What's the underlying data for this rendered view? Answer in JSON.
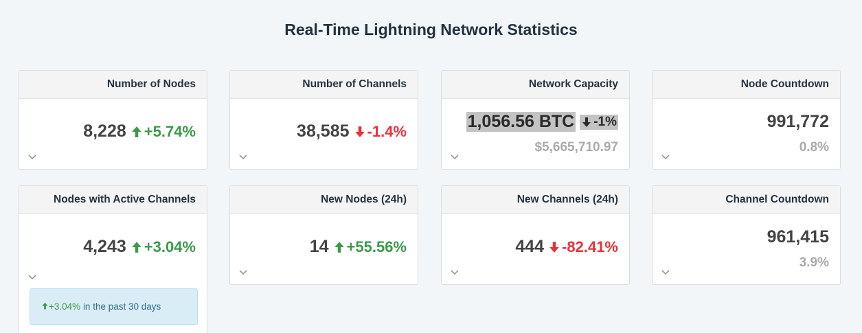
{
  "header": {
    "title": "Real-Time Lightning Network Statistics"
  },
  "cards": [
    {
      "label": "Number of Nodes",
      "value": "8,228",
      "change": "+5.74%"
    },
    {
      "label": "Number of Channels",
      "value": "38,585",
      "change": "-1.4%"
    },
    {
      "label": "Network Capacity",
      "value": "1,056.56 BTC",
      "change": "-1%",
      "sub": "$5,665,710.97"
    },
    {
      "label": "Node Countdown",
      "value": "991,772",
      "sub": "0.8%"
    },
    {
      "label": "Nodes with Active Channels",
      "value": "4,243",
      "change": "+3.04%",
      "note": {
        "change": "+3.04%",
        "text": "in the past 30 days"
      }
    },
    {
      "label": "New Nodes (24h)",
      "value": "14",
      "change": "+55.56%"
    },
    {
      "label": "New Channels (24h)",
      "value": "444",
      "change": "-82.41%"
    },
    {
      "label": "Channel Countdown",
      "value": "961,415",
      "sub": "3.9%"
    }
  ]
}
